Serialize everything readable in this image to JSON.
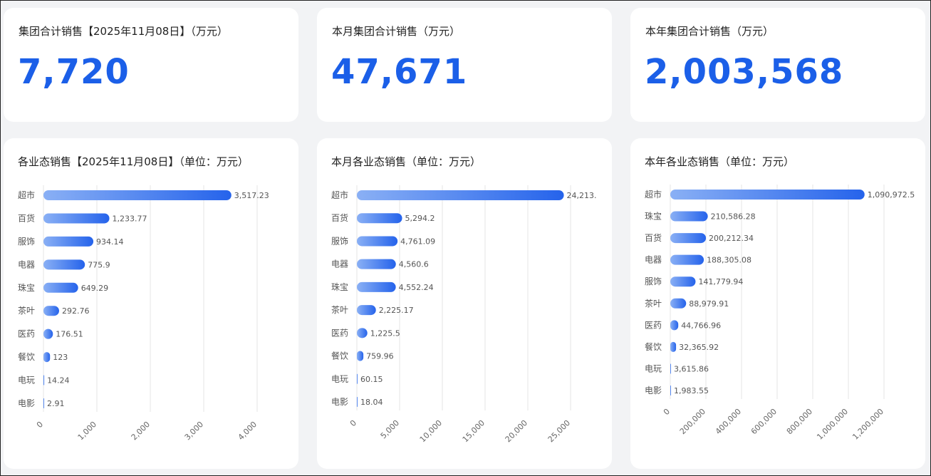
{
  "kpis": [
    {
      "title": "集团合计销售【2025年11月08日】（万元）",
      "value": "7,720"
    },
    {
      "title": "本月集团合计销售（万元）",
      "value": "47,671"
    },
    {
      "title": "本年集团合计销售（万元）",
      "value": "2,003,568"
    }
  ],
  "colors": {
    "accent": "#1b5fe8",
    "bar_start": "#8ab0f5",
    "bar_end": "#2563eb"
  },
  "chart_data": [
    {
      "type": "bar",
      "orientation": "horizontal",
      "title": "各业态销售【2025年11月08日】（单位：万元）",
      "categories": [
        "超市",
        "百货",
        "服饰",
        "电器",
        "珠宝",
        "茶叶",
        "医药",
        "餐饮",
        "电玩",
        "电影"
      ],
      "values": [
        3517.23,
        1233.77,
        934.14,
        775.9,
        649.29,
        292.76,
        176.51,
        123,
        14.24,
        2.91
      ],
      "value_labels": [
        "3,517.23",
        "1,233.77",
        "934.14",
        "775.9",
        "649.29",
        "292.76",
        "176.51",
        "123",
        "14.24",
        "2.91"
      ],
      "xlim": [
        0,
        4000
      ],
      "xticks": [
        0,
        1000,
        2000,
        3000,
        4000
      ],
      "xtick_labels": [
        "0",
        "1,000",
        "2,000",
        "3,000",
        "4,000"
      ],
      "grid": true
    },
    {
      "type": "bar",
      "orientation": "horizontal",
      "title": "本月各业态销售（单位：万元）",
      "categories": [
        "超市",
        "百货",
        "服饰",
        "电器",
        "珠宝",
        "茶叶",
        "医药",
        "餐饮",
        "电玩",
        "电影"
      ],
      "values": [
        24213,
        5294.2,
        4761.09,
        4560.6,
        4552.24,
        2225.17,
        1225.5,
        759.96,
        60.15,
        18.04
      ],
      "value_labels": [
        "24,213.",
        "5,294.2",
        "4,761.09",
        "4,560.6",
        "4,552.24",
        "2,225.17",
        "1,225.5",
        "759.96",
        "60.15",
        "18.04"
      ],
      "xlim": [
        0,
        25000
      ],
      "xticks": [
        0,
        5000,
        10000,
        15000,
        20000,
        25000
      ],
      "xtick_labels": [
        "0",
        "5,000",
        "10,000",
        "15,000",
        "20,000",
        "25,000"
      ],
      "grid": true
    },
    {
      "type": "bar",
      "orientation": "horizontal",
      "title": "本年各业态销售（单位：万元）",
      "categories": [
        "超市",
        "珠宝",
        "百货",
        "电器",
        "服饰",
        "茶叶",
        "医药",
        "餐饮",
        "电玩",
        "电影"
      ],
      "values": [
        1090972.5,
        210586.28,
        200212.34,
        188305.08,
        141779.94,
        88979.91,
        44766.96,
        32365.92,
        3615.86,
        1983.55
      ],
      "value_labels": [
        "1,090,972.5",
        "210,586.28",
        "200,212.34",
        "188,305.08",
        "141,779.94",
        "88,979.91",
        "44,766.96",
        "32,365.92",
        "3,615.86",
        "1,983.55"
      ],
      "xlim": [
        0,
        1200000
      ],
      "xticks": [
        0,
        200000,
        400000,
        600000,
        800000,
        1000000,
        1200000
      ],
      "xtick_labels": [
        "0",
        "200,000",
        "400,000",
        "600,000",
        "800,000",
        "1,000,000",
        "1,200,000"
      ],
      "grid": true
    }
  ]
}
